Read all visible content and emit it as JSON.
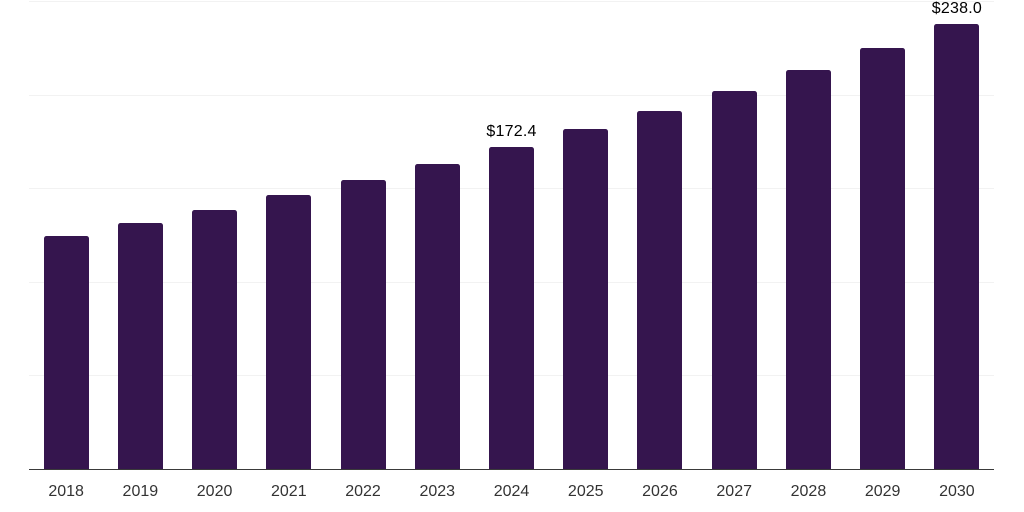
{
  "chart_data": {
    "type": "bar",
    "title": "",
    "xlabel": "",
    "ylabel": "",
    "categories": [
      "2018",
      "2019",
      "2020",
      "2021",
      "2022",
      "2023",
      "2024",
      "2025",
      "2026",
      "2027",
      "2028",
      "2029",
      "2030"
    ],
    "values": [
      124.8,
      131.7,
      139.0,
      146.7,
      154.7,
      163.3,
      172.4,
      181.9,
      192.0,
      202.6,
      213.8,
      225.6,
      238.0
    ],
    "ylim": [
      0,
      250
    ],
    "grid_step": 50,
    "grid": true,
    "legend": false,
    "data_labels": [
      {
        "category": "2024",
        "text": "$172.4"
      },
      {
        "category": "2030",
        "text": "$238.0"
      }
    ],
    "colors": {
      "bar": "#35154E",
      "gridline": "#F2F2F2",
      "axis_line": "#3A3A3A",
      "tick_label": "#333333",
      "data_label": "#000000",
      "background": "#FFFFFF"
    }
  }
}
